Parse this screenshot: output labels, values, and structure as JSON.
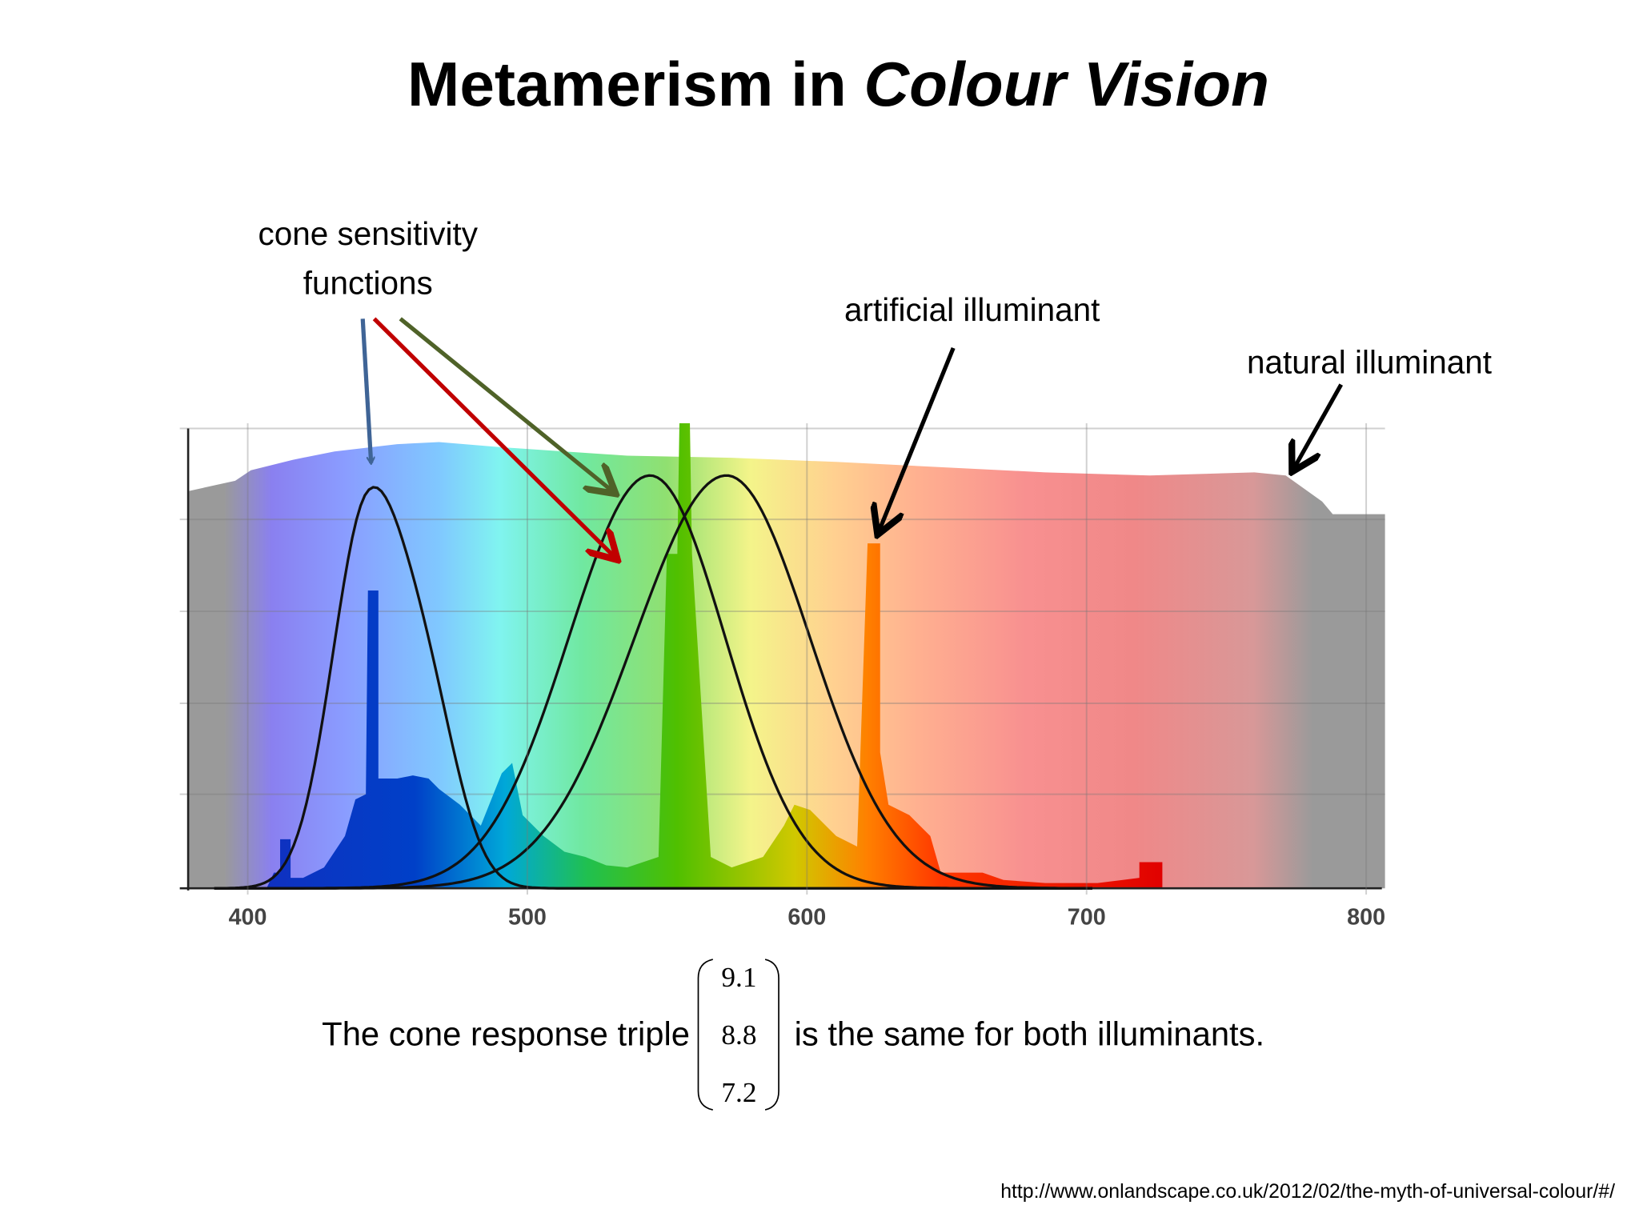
{
  "title": {
    "text": "Metamerism in ",
    "emphasis": "Colour Vision"
  },
  "annotations": {
    "cone": [
      "cone sensitivity",
      "functions"
    ],
    "artificial": "artificial illuminant",
    "natural": "natural illuminant"
  },
  "axis": {
    "ticks": [
      400,
      500,
      600,
      700,
      800
    ]
  },
  "equation": {
    "before": "The cone response triple",
    "vector": [
      9.1,
      8.8,
      7.2
    ],
    "after": "is the same for both illuminants."
  },
  "source": "http://www.onlandscape.co.uk/2012/02/the-myth-of-universal-colour/#/"
}
